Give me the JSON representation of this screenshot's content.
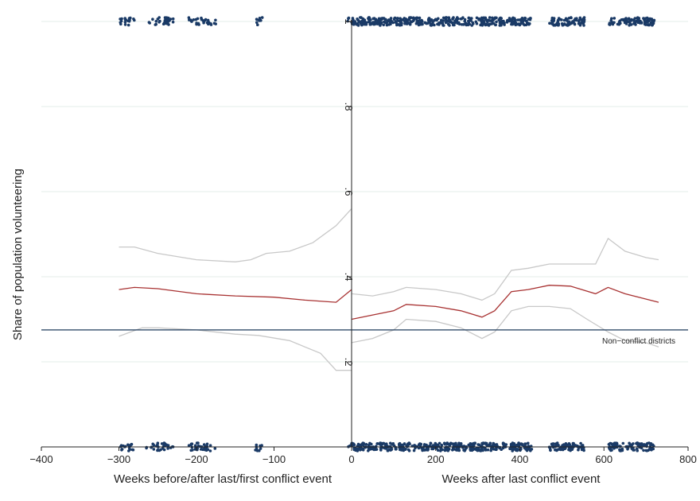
{
  "chart_data": {
    "type": "line",
    "title": "",
    "ylabel": "Share of population volunteering",
    "xlabel_left": "Weeks before/after last/first conflict event",
    "xlabel_right": "Weeks after last conflict event",
    "xlim": [
      -400,
      800
    ],
    "ylim": [
      0,
      1
    ],
    "grid": true,
    "xticks": [
      -400,
      -300,
      -200,
      -100,
      0,
      200,
      400,
      600,
      800
    ],
    "xtick_labels": [
      "−400",
      "−300",
      "−200",
      "−100",
      "0",
      "200",
      "400",
      "600",
      "800"
    ],
    "yticks": [
      0.2,
      0.4,
      0.6,
      0.8,
      1
    ],
    "ytick_labels": [
      ".2",
      ".4",
      ".6",
      ".8",
      "1"
    ],
    "reference_line": {
      "y": 0.275,
      "label": "Non−conflict districts",
      "color": "#1f3b5c"
    },
    "series": [
      {
        "role": "upper",
        "color": "#c8c8c8",
        "segments": [
          [
            [
              -300,
              0.47
            ],
            [
              -280,
              0.47
            ],
            [
              -250,
              0.455
            ],
            [
              -200,
              0.44
            ],
            [
              -150,
              0.435
            ],
            [
              -130,
              0.44
            ],
            [
              -110,
              0.455
            ],
            [
              -80,
              0.46
            ],
            [
              -50,
              0.48
            ],
            [
              -20,
              0.52
            ],
            [
              0,
              0.56
            ]
          ],
          [
            [
              0,
              0.36
            ],
            [
              50,
              0.355
            ],
            [
              100,
              0.365
            ],
            [
              130,
              0.375
            ],
            [
              200,
              0.37
            ],
            [
              260,
              0.36
            ],
            [
              310,
              0.345
            ],
            [
              340,
              0.36
            ],
            [
              380,
              0.415
            ],
            [
              420,
              0.42
            ],
            [
              470,
              0.43
            ],
            [
              540,
              0.43
            ],
            [
              580,
              0.43
            ],
            [
              610,
              0.49
            ],
            [
              650,
              0.46
            ],
            [
              700,
              0.445
            ],
            [
              730,
              0.44
            ]
          ]
        ]
      },
      {
        "role": "estimate",
        "color": "#a83232",
        "segments": [
          [
            [
              -300,
              0.37
            ],
            [
              -280,
              0.375
            ],
            [
              -250,
              0.372
            ],
            [
              -200,
              0.36
            ],
            [
              -150,
              0.355
            ],
            [
              -100,
              0.352
            ],
            [
              -60,
              0.345
            ],
            [
              -20,
              0.34
            ],
            [
              0,
              0.37
            ]
          ],
          [
            [
              0,
              0.3
            ],
            [
              50,
              0.31
            ],
            [
              100,
              0.32
            ],
            [
              130,
              0.335
            ],
            [
              200,
              0.33
            ],
            [
              260,
              0.32
            ],
            [
              310,
              0.305
            ],
            [
              340,
              0.32
            ],
            [
              380,
              0.365
            ],
            [
              420,
              0.37
            ],
            [
              470,
              0.38
            ],
            [
              520,
              0.378
            ],
            [
              580,
              0.36
            ],
            [
              610,
              0.375
            ],
            [
              650,
              0.36
            ],
            [
              730,
              0.34
            ]
          ]
        ]
      },
      {
        "role": "lower",
        "color": "#c8c8c8",
        "segments": [
          [
            [
              -300,
              0.26
            ],
            [
              -270,
              0.28
            ],
            [
              -250,
              0.28
            ],
            [
              -200,
              0.275
            ],
            [
              -150,
              0.265
            ],
            [
              -120,
              0.262
            ],
            [
              -80,
              0.25
            ],
            [
              -40,
              0.22
            ],
            [
              -20,
              0.18
            ],
            [
              0,
              0.18
            ]
          ],
          [
            [
              0,
              0.245
            ],
            [
              50,
              0.255
            ],
            [
              100,
              0.275
            ],
            [
              130,
              0.3
            ],
            [
              200,
              0.295
            ],
            [
              260,
              0.28
            ],
            [
              310,
              0.255
            ],
            [
              340,
              0.27
            ],
            [
              380,
              0.32
            ],
            [
              420,
              0.33
            ],
            [
              470,
              0.33
            ],
            [
              520,
              0.325
            ],
            [
              560,
              0.3
            ],
            [
              610,
              0.27
            ],
            [
              650,
              0.25
            ],
            [
              700,
              0.245
            ],
            [
              730,
              0.235
            ]
          ]
        ]
      }
    ],
    "jitter_rug": {
      "color": "#1a3a66",
      "levels": [
        0,
        1
      ],
      "x_ranges": [
        [
          -300,
          -280
        ],
        [
          -265,
          -230
        ],
        [
          -210,
          -175
        ],
        [
          -125,
          -115
        ],
        [
          -5,
          430
        ],
        [
          470,
          555
        ],
        [
          610,
          720
        ]
      ]
    }
  }
}
